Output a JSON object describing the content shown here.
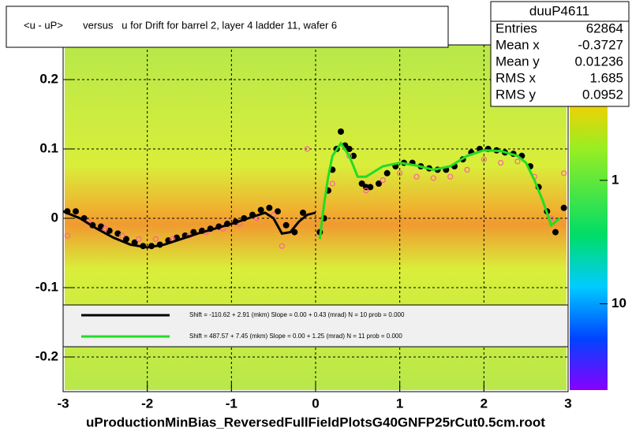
{
  "chart_data": {
    "type": "scatter",
    "title": "<u - uP>       versus   u for Drift for barrel 2, layer 4 ladder 11, wafer 6",
    "xlabel": "uProductionMinBias_ReversedFullFieldPlotsG40GNFP25rCut0.5cm.root",
    "xlim": [
      -3,
      3
    ],
    "ylim": [
      -0.25,
      0.25
    ],
    "xticks": [
      -3,
      -2,
      -1,
      0,
      1,
      2,
      3
    ],
    "yticks": [
      -0.2,
      -0.1,
      0,
      0.1,
      0.2
    ],
    "zlim": [
      50,
      0.08
    ],
    "zlog": true,
    "zticks": [
      1,
      10
    ],
    "grid": true,
    "stats": {
      "title": "duuP4611",
      "rows": [
        {
          "label": "Entries",
          "value": 62864
        },
        {
          "label": "Mean x",
          "value": -0.3727
        },
        {
          "label": "Mean y",
          "value": 0.01236
        },
        {
          "label": "RMS x",
          "value": 1.685
        },
        {
          "label": "RMS y",
          "value": 0.0952
        }
      ]
    },
    "series": [
      {
        "type": "scatter",
        "marker": "filled",
        "color": "#000000",
        "x": [
          -2.95,
          -2.85,
          -2.75,
          -2.65,
          -2.55,
          -2.45,
          -2.35,
          -2.25,
          -2.15,
          -2.05,
          -1.95,
          -1.85,
          -1.75,
          -1.65,
          -1.55,
          -1.45,
          -1.35,
          -1.25,
          -1.15,
          -1.05,
          -0.95,
          -0.85,
          -0.75,
          -0.65,
          -0.55,
          -0.45,
          -0.35,
          -0.25,
          -0.15,
          0.05,
          0.1,
          0.15,
          0.2,
          0.25,
          0.3,
          0.35,
          0.4,
          0.45,
          0.55,
          0.6,
          0.65,
          0.75,
          0.85,
          0.95,
          1.05,
          1.15,
          1.25,
          1.35,
          1.45,
          1.55,
          1.65,
          1.75,
          1.85,
          1.95,
          2.05,
          2.15,
          2.25,
          2.35,
          2.45,
          2.55,
          2.65,
          2.75,
          2.85,
          2.95
        ],
        "values": [
          0.01,
          0.01,
          0.0,
          -0.01,
          -0.012,
          -0.018,
          -0.022,
          -0.03,
          -0.035,
          -0.04,
          -0.04,
          -0.038,
          -0.032,
          -0.028,
          -0.025,
          -0.02,
          -0.018,
          -0.015,
          -0.012,
          -0.008,
          -0.005,
          0.0,
          0.005,
          0.012,
          0.015,
          0.01,
          -0.01,
          -0.02,
          0.008,
          -0.02,
          0.0,
          0.04,
          0.07,
          0.1,
          0.125,
          0.105,
          0.1,
          0.09,
          0.05,
          0.045,
          0.045,
          0.05,
          0.065,
          0.075,
          0.08,
          0.08,
          0.075,
          0.072,
          0.07,
          0.07,
          0.075,
          0.085,
          0.095,
          0.1,
          0.1,
          0.098,
          0.095,
          0.093,
          0.09,
          0.075,
          0.045,
          0.01,
          -0.02,
          0.015
        ]
      },
      {
        "type": "scatter",
        "marker": "open",
        "color": "#ff5fa0",
        "x": [
          -2.95,
          -2.7,
          -2.5,
          -2.3,
          -2.1,
          -1.9,
          -1.7,
          -1.5,
          -1.3,
          -1.1,
          -0.9,
          -0.7,
          -0.5,
          -0.4,
          -0.1,
          0.2,
          0.4,
          0.6,
          0.8,
          1.0,
          1.2,
          1.4,
          1.6,
          1.8,
          2.0,
          2.2,
          2.4,
          2.6,
          2.8,
          2.95
        ],
        "values": [
          -0.025,
          -0.005,
          -0.015,
          -0.025,
          -0.03,
          -0.03,
          -0.03,
          -0.025,
          -0.02,
          -0.015,
          -0.008,
          0.0,
          0.005,
          -0.04,
          0.1,
          0.05,
          0.09,
          0.04,
          0.055,
          0.065,
          0.06,
          0.058,
          0.06,
          0.07,
          0.085,
          0.08,
          0.082,
          0.06,
          0.0,
          0.065
        ]
      },
      {
        "type": "line",
        "name": "Shift =  -110.62 + 2.91 (mkm) Slope =     0.00 + 0.43 (mrad)  N = 10 prob = 0.000",
        "color": "#000000",
        "x": [
          -3,
          -2.8,
          -2.6,
          -2.4,
          -2.2,
          -2.0,
          -1.8,
          -1.6,
          -1.4,
          -1.2,
          -1.0,
          -0.8,
          -0.6,
          -0.5,
          -0.4,
          -0.3,
          -0.2,
          -0.1,
          0.0
        ],
        "values": [
          0.01,
          0.0,
          -0.015,
          -0.028,
          -0.038,
          -0.042,
          -0.038,
          -0.03,
          -0.022,
          -0.015,
          -0.008,
          0.0,
          0.008,
          0.0,
          -0.022,
          -0.02,
          -0.005,
          0.005,
          0.008
        ]
      },
      {
        "type": "line",
        "name": "Shift =   487.57 + 7.45 (mkm) Slope =     0.00 + 1.25 (mrad)  N = 11 prob = 0.000",
        "color": "#22dd22",
        "x": [
          0.05,
          0.1,
          0.15,
          0.2,
          0.3,
          0.4,
          0.5,
          0.6,
          0.8,
          1.0,
          1.2,
          1.4,
          1.6,
          1.8,
          2.0,
          2.2,
          2.4,
          2.5,
          2.6,
          2.7,
          2.8,
          2.9
        ],
        "values": [
          -0.03,
          0.02,
          0.06,
          0.09,
          0.108,
          0.09,
          0.06,
          0.06,
          0.075,
          0.08,
          0.076,
          0.07,
          0.075,
          0.09,
          0.098,
          0.097,
          0.09,
          0.08,
          0.055,
          0.025,
          -0.01,
          0.0
        ]
      }
    ]
  }
}
